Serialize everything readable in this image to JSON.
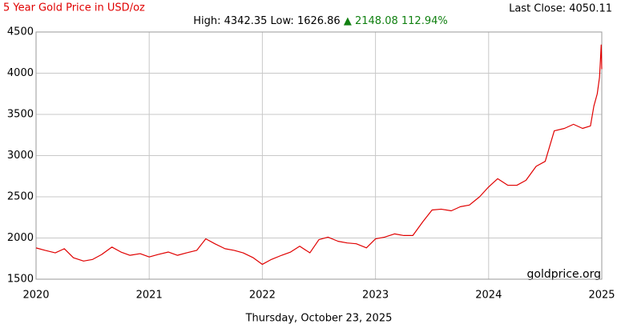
{
  "chart_data": {
    "type": "line",
    "title": "5 Year Gold Price in USD/oz",
    "annotations": [
      "Last Close: 4050.11",
      "High: 4342.35",
      "Low: 1626.86",
      "▲ 2148.08 112.94%",
      "goldprice.org",
      "Thursday, October 23, 2025"
    ],
    "x": [
      2020,
      2020.08,
      2020.17,
      2020.25,
      2020.33,
      2020.42,
      2020.5,
      2020.58,
      2020.67,
      2020.75,
      2020.83,
      2020.92,
      2021,
      2021.08,
      2021.17,
      2021.25,
      2021.33,
      2021.42,
      2021.5,
      2021.58,
      2021.67,
      2021.75,
      2021.83,
      2021.92,
      2022,
      2022.08,
      2022.17,
      2022.25,
      2022.33,
      2022.42,
      2022.5,
      2022.58,
      2022.67,
      2022.75,
      2022.83,
      2022.92,
      2023,
      2023.08,
      2023.17,
      2023.25,
      2023.33,
      2023.42,
      2023.5,
      2023.58,
      2023.67,
      2023.75,
      2023.83,
      2023.92,
      2024,
      2024.08,
      2024.17,
      2024.25,
      2024.33,
      2024.42,
      2024.5,
      2024.58,
      2024.67,
      2024.75,
      2024.83,
      2024.9,
      2024.93,
      2024.96,
      2024.98,
      2024.995,
      2025
    ],
    "series": [
      {
        "name": "Gold",
        "color": "#e00000",
        "values": [
          1880,
          1850,
          1820,
          1870,
          1760,
          1720,
          1740,
          1800,
          1890,
          1830,
          1790,
          1810,
          1770,
          1800,
          1830,
          1790,
          1820,
          1850,
          1990,
          1930,
          1870,
          1850,
          1820,
          1760,
          1680,
          1740,
          1790,
          1830,
          1900,
          1820,
          1980,
          2010,
          1960,
          1940,
          1930,
          1880,
          1990,
          2010,
          2050,
          2030,
          2030,
          2200,
          2340,
          2350,
          2330,
          2380,
          2400,
          2500,
          2620,
          2720,
          2640,
          2640,
          2700,
          2870,
          2930,
          3300,
          3330,
          3380,
          3330,
          3360,
          3600,
          3750,
          3950,
          4342.35,
          4050.11
        ]
      }
    ],
    "xlim": [
      2020,
      2025
    ],
    "xticks": [
      2020,
      2021,
      2022,
      2023,
      2024,
      2025
    ],
    "ylim": [
      1500,
      4500
    ],
    "yticks": [
      1500,
      2000,
      2500,
      3000,
      3500,
      4000,
      4500
    ],
    "grid": true
  }
}
